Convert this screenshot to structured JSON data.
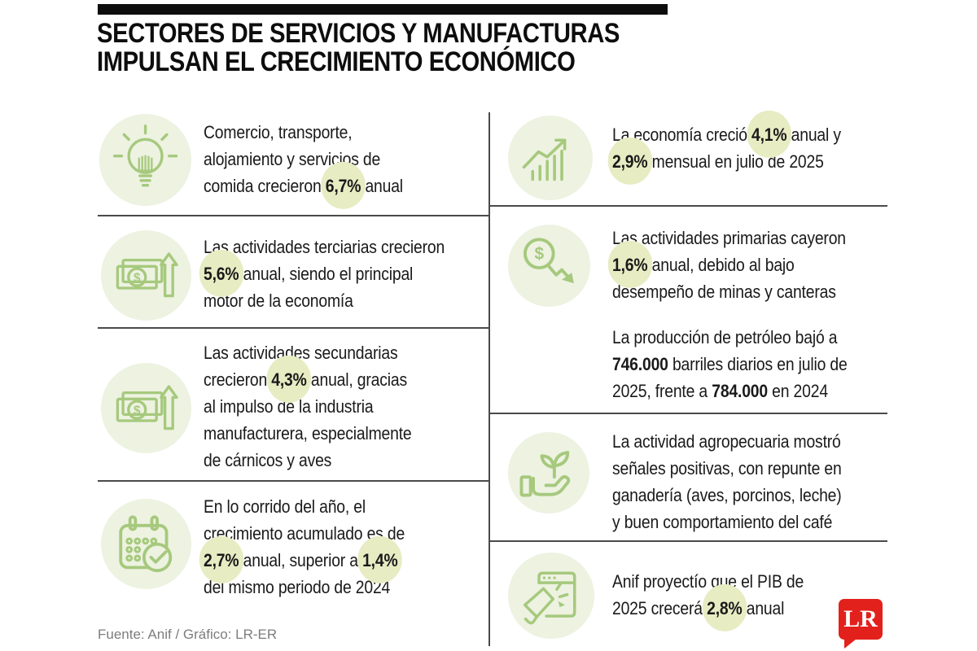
{
  "header": {
    "title_line1": "SECTORES DE SERVICIOS Y MANUFACTURAS",
    "title_line2": "IMPULSAN EL CRECIMIENTO ECONÓMICO"
  },
  "colors": {
    "accent_green": "#a6c97d",
    "icon_circle_bg": "#edf2e1",
    "highlight_circle": "#e7ecc3",
    "logo_red": "#e2211c",
    "divider": "#4a4a4a",
    "text": "#1a1a1a"
  },
  "left_column": {
    "items": [
      {
        "id": "commerce-growth",
        "icon": "lightbulb-icon",
        "segments": [
          {
            "t": "Comercio, transporte,",
            "br": true
          },
          {
            "t": "alojamiento y servicios de",
            "br": true
          },
          {
            "t": "comida crecieron "
          },
          {
            "t": "6,7%",
            "b": true,
            "hl": true
          },
          {
            "t": " anual"
          }
        ]
      },
      {
        "id": "tertiary-activities",
        "icon": "money-growth-icon",
        "segments": [
          {
            "t": "Las actividades terciarias crecieron",
            "br": true
          },
          {
            "t": "5,6%",
            "b": true,
            "hl": true
          },
          {
            "t": " anual, siendo el principal",
            "br": true
          },
          {
            "t": "motor de la economía"
          }
        ]
      },
      {
        "id": "secondary-activities",
        "icon": "money-growth-icon",
        "segments": [
          {
            "t": "Las actividades secundarias",
            "br": true
          },
          {
            "t": "crecieron "
          },
          {
            "t": "4,3%",
            "b": true,
            "hl": true
          },
          {
            "t": " anual, gracias",
            "br": true
          },
          {
            "t": "al impulso de la industria",
            "br": true
          },
          {
            "t": "manufacturera, especialmente",
            "br": true
          },
          {
            "t": "de cárnicos y aves"
          }
        ]
      },
      {
        "id": "ytd-growth",
        "icon": "calendar-check-icon",
        "segments": [
          {
            "t": "En lo corrido del año, el",
            "br": true
          },
          {
            "t": "crecimiento acumulado es de",
            "br": true
          },
          {
            "t": "2,7%",
            "b": true,
            "hl": true
          },
          {
            "t": " anual, superior a "
          },
          {
            "t": "1,4%",
            "b": true,
            "hl": true,
            "br": true
          },
          {
            "t": "del mismo periodo de 2024"
          }
        ]
      }
    ]
  },
  "right_column": {
    "items": [
      {
        "id": "economy-growth",
        "icon": "chart-growth-icon",
        "segments": [
          {
            "t": "La economía creció "
          },
          {
            "t": "4,1%",
            "b": true,
            "hl": true
          },
          {
            "t": " anual y",
            "br": true
          },
          {
            "t": "2,9%",
            "b": true,
            "hl": true
          },
          {
            "t": " mensual en julio de 2025"
          }
        ]
      },
      {
        "id": "primary-activities-decline",
        "icon": "dollar-decline-icon",
        "segments": [
          {
            "t": "Las actividades primarias cayeron",
            "br": true
          },
          {
            "t": "1,6%",
            "b": true,
            "hl": true
          },
          {
            "t": " anual, debido al bajo",
            "br": true
          },
          {
            "t": "desempeño de minas y canteras"
          }
        ]
      },
      {
        "id": "oil-production",
        "icon": null,
        "segments": [
          {
            "t": "La producción de petróleo bajó a",
            "br": true
          },
          {
            "t": "746.000",
            "b": true
          },
          {
            "t": " barriles diarios en julio de",
            "br": true
          },
          {
            "t": "2025, frente a "
          },
          {
            "t": "784.000",
            "b": true
          },
          {
            "t": " en 2024"
          }
        ]
      },
      {
        "id": "agriculture",
        "icon": "hand-plant-icon",
        "segments": [
          {
            "t": "La actividad agropecuaria mostró",
            "br": true
          },
          {
            "t": "señales positivas, con repunte en",
            "br": true
          },
          {
            "t": "ganadería (aves, porcinos, leche)",
            "br": true
          },
          {
            "t": "y buen comportamiento del café"
          }
        ]
      },
      {
        "id": "pib-projection",
        "icon": "megaphone-icon",
        "segments": [
          {
            "t": "Anif proyectío que el PIB de",
            "br": true
          },
          {
            "t": "2025 crecerá "
          },
          {
            "t": "2,8%",
            "b": true,
            "hl": true
          },
          {
            "t": " anual"
          }
        ]
      }
    ]
  },
  "footer": {
    "source": "Fuente: Anif / Gráfico: LR-ER"
  },
  "logo": {
    "text": "LR"
  }
}
